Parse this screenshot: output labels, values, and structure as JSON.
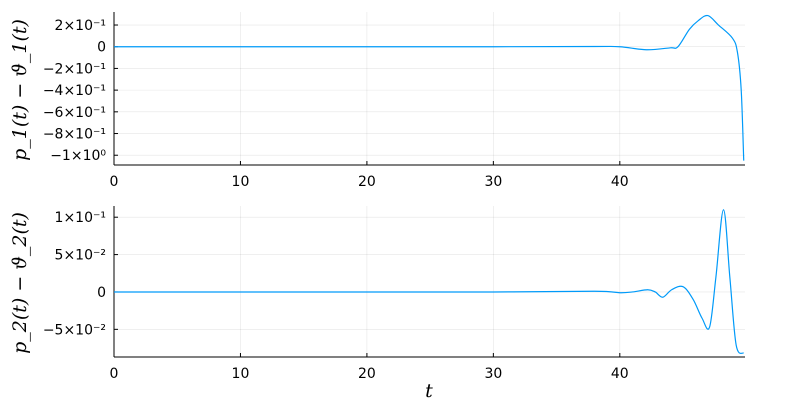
{
  "chart_data": [
    {
      "type": "line",
      "ylabel": "p_1(t) − ϑ_1(t)",
      "xlabel": "",
      "xlim": [
        0,
        49.9
      ],
      "ylim": [
        -1.09,
        0.32
      ],
      "xticks": [
        0,
        10,
        20,
        30,
        40
      ],
      "xtick_labels": [
        "0",
        "10",
        "20",
        "30",
        "40"
      ],
      "yticks": [
        0.2,
        0,
        -0.2,
        -0.4,
        -0.6,
        -0.8,
        -1.0
      ],
      "ytick_labels": [
        "2×10⁻¹",
        "0",
        "−2×10⁻¹",
        "−4×10⁻¹",
        "−6×10⁻¹",
        "−8×10⁻¹",
        "−1×10⁰"
      ],
      "grid": true,
      "legend": "none",
      "color": "#009af9",
      "x": [
        0,
        10,
        20,
        30,
        38,
        40,
        42.1,
        44,
        44.6,
        45.5,
        46.2,
        46.96,
        47.8,
        48.9,
        49.3,
        49.6,
        49.8
      ],
      "y": [
        0,
        0,
        0,
        0,
        0.002,
        0,
        -0.028,
        -0.01,
        0,
        0.16,
        0.24,
        0.287,
        0.2,
        0.08,
        -0.05,
        -0.4,
        -1.05
      ]
    },
    {
      "type": "line",
      "ylabel": "p_2(t) − ϑ_2(t)",
      "xlabel": "t",
      "xlim": [
        0,
        49.9
      ],
      "ylim": [
        -0.087,
        0.115
      ],
      "xticks": [
        0,
        10,
        20,
        30,
        40
      ],
      "xtick_labels": [
        "0",
        "10",
        "20",
        "30",
        "40"
      ],
      "yticks": [
        0.1,
        0.05,
        0,
        -0.05
      ],
      "ytick_labels": [
        "1×10⁻¹",
        "5×10⁻²",
        "0",
        "−5×10⁻²"
      ],
      "grid": true,
      "legend": "none",
      "color": "#009af9",
      "x": [
        0,
        10,
        20,
        30,
        38,
        40,
        41,
        42.2,
        42.8,
        43.4,
        44.1,
        45.0,
        45.8,
        46.5,
        47.1,
        47.6,
        48.2,
        48.7,
        49.2,
        49.8
      ],
      "y": [
        0,
        0,
        0,
        0,
        0.001,
        -0.001,
        0,
        0.003,
        0.0,
        -0.007,
        0.003,
        0.007,
        -0.01,
        -0.035,
        -0.047,
        0.02,
        0.11,
        0.02,
        -0.071,
        -0.082
      ]
    }
  ]
}
